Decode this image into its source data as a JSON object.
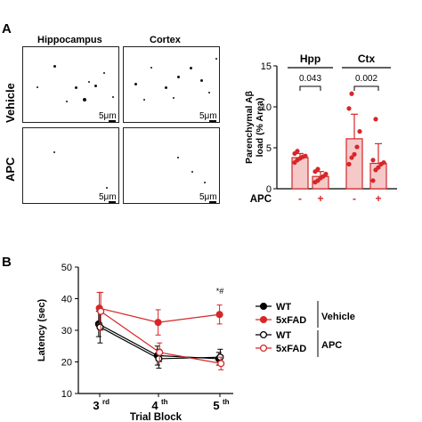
{
  "panel_a": {
    "letter": "A",
    "columns": [
      "Hippocampus",
      "Cortex"
    ],
    "rows": [
      "Vehicle",
      "APC"
    ],
    "scale_label": "5μm"
  },
  "panel_b": {
    "letter": "B"
  },
  "colors": {
    "wt": "#000000",
    "fad": "#d62728",
    "fad_fill": "#f6c9c9"
  },
  "chart_data": [
    {
      "type": "bar",
      "panel": "A",
      "ylabel": "Parenchymal Aβ load (% Area)",
      "ylim": [
        0,
        15
      ],
      "yticks": [
        0,
        5,
        10,
        15
      ],
      "groups": [
        "Hpp",
        "Ctx"
      ],
      "x_row_label": "APC",
      "categories": [
        "-",
        "+",
        "-",
        "+"
      ],
      "values": [
        3.8,
        1.5,
        6.1,
        3.1
      ],
      "errors": [
        0.5,
        0.6,
        3.0,
        2.4
      ],
      "points": [
        [
          3.2,
          3.5,
          3.7,
          3.9,
          4.0,
          4.3,
          4.6
        ],
        [
          0.8,
          1.0,
          1.3,
          1.5,
          1.8,
          2.1,
          2.4
        ],
        [
          3.0,
          3.8,
          4.2,
          5.1,
          7.0,
          9.8,
          11.6
        ],
        [
          1.0,
          2.3,
          2.6,
          3.0,
          3.2,
          3.5,
          8.5
        ]
      ],
      "comparisons": [
        {
          "group": "Hpp",
          "label": "0.043"
        },
        {
          "group": "Ctx",
          "label": "0.002"
        }
      ]
    },
    {
      "type": "line",
      "panel": "B",
      "xlabel": "Trial Block",
      "ylabel": "Latency (sec)",
      "ylim": [
        10,
        50
      ],
      "yticks": [
        10,
        20,
        30,
        40,
        50
      ],
      "categories": [
        {
          "num": "3",
          "sup": "rd"
        },
        {
          "num": "4",
          "sup": "th"
        },
        {
          "num": "5",
          "sup": "th"
        }
      ],
      "annotation": "*#",
      "series": [
        {
          "name": "WT",
          "treatment": "Vehicle",
          "values": [
            32,
            22,
            21
          ],
          "errors": [
            4,
            3,
            2
          ],
          "filled": true,
          "color": "#000000"
        },
        {
          "name": "5xFAD",
          "treatment": "Vehicle",
          "values": [
            37,
            32.5,
            35
          ],
          "errors": [
            5,
            4,
            3
          ],
          "filled": true,
          "color": "#d62728"
        },
        {
          "name": "WT",
          "treatment": "APC",
          "values": [
            31,
            21,
            21.5
          ],
          "errors": [
            5,
            3,
            2.5
          ],
          "filled": false,
          "color": "#000000"
        },
        {
          "name": "5xFAD",
          "treatment": "APC",
          "values": [
            36,
            23,
            19.5
          ],
          "errors": [
            6,
            3,
            2
          ],
          "filled": false,
          "color": "#d62728"
        }
      ],
      "legend_groups": [
        "Vehicle",
        "APC"
      ],
      "legend_placement": "right"
    }
  ]
}
